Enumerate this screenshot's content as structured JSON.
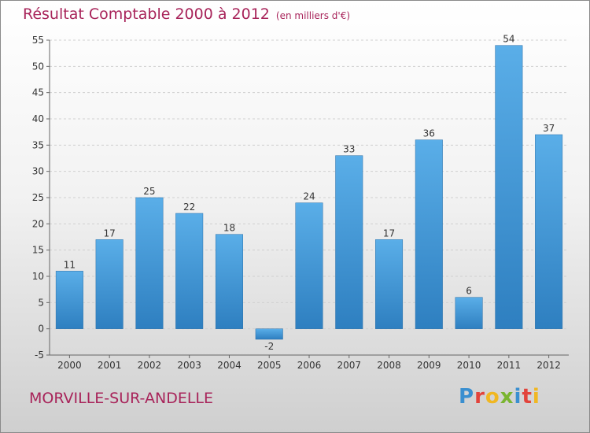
{
  "header": {
    "title": "Résultat Comptable 2000 à 2012",
    "unit": "(en milliers d'€)"
  },
  "footer": {
    "place": "MORVILLE-SUR-ANDELLE",
    "logo_letters": [
      {
        "char": "P",
        "color": "#3a8fd0"
      },
      {
        "char": "r",
        "color": "#e2433b"
      },
      {
        "char": "o",
        "color": "#f0b722"
      },
      {
        "char": "x",
        "color": "#7ab530"
      },
      {
        "char": "i",
        "color": "#3a8fd0"
      },
      {
        "char": "t",
        "color": "#e2433b"
      },
      {
        "char": "i",
        "color": "#f0b722"
      }
    ]
  },
  "colors": {
    "bar_top": "#5aaee8",
    "bar_bottom": "#2e7fc0",
    "title": "#a8245a"
  },
  "chart_data": {
    "type": "bar",
    "title": "Résultat Comptable 2000 à 2012",
    "subtitle": "(en milliers d'€)",
    "categories": [
      "2000",
      "2001",
      "2002",
      "2003",
      "2004",
      "2005",
      "2006",
      "2007",
      "2008",
      "2009",
      "2010",
      "2011",
      "2012"
    ],
    "values": [
      11,
      17,
      25,
      22,
      18,
      -2,
      24,
      33,
      17,
      36,
      6,
      54,
      37
    ],
    "ylim": [
      -5,
      55
    ],
    "yticks": [
      -5,
      0,
      5,
      10,
      15,
      20,
      25,
      30,
      35,
      40,
      45,
      50,
      55
    ],
    "grid": true,
    "xlabel": "",
    "ylabel": ""
  }
}
